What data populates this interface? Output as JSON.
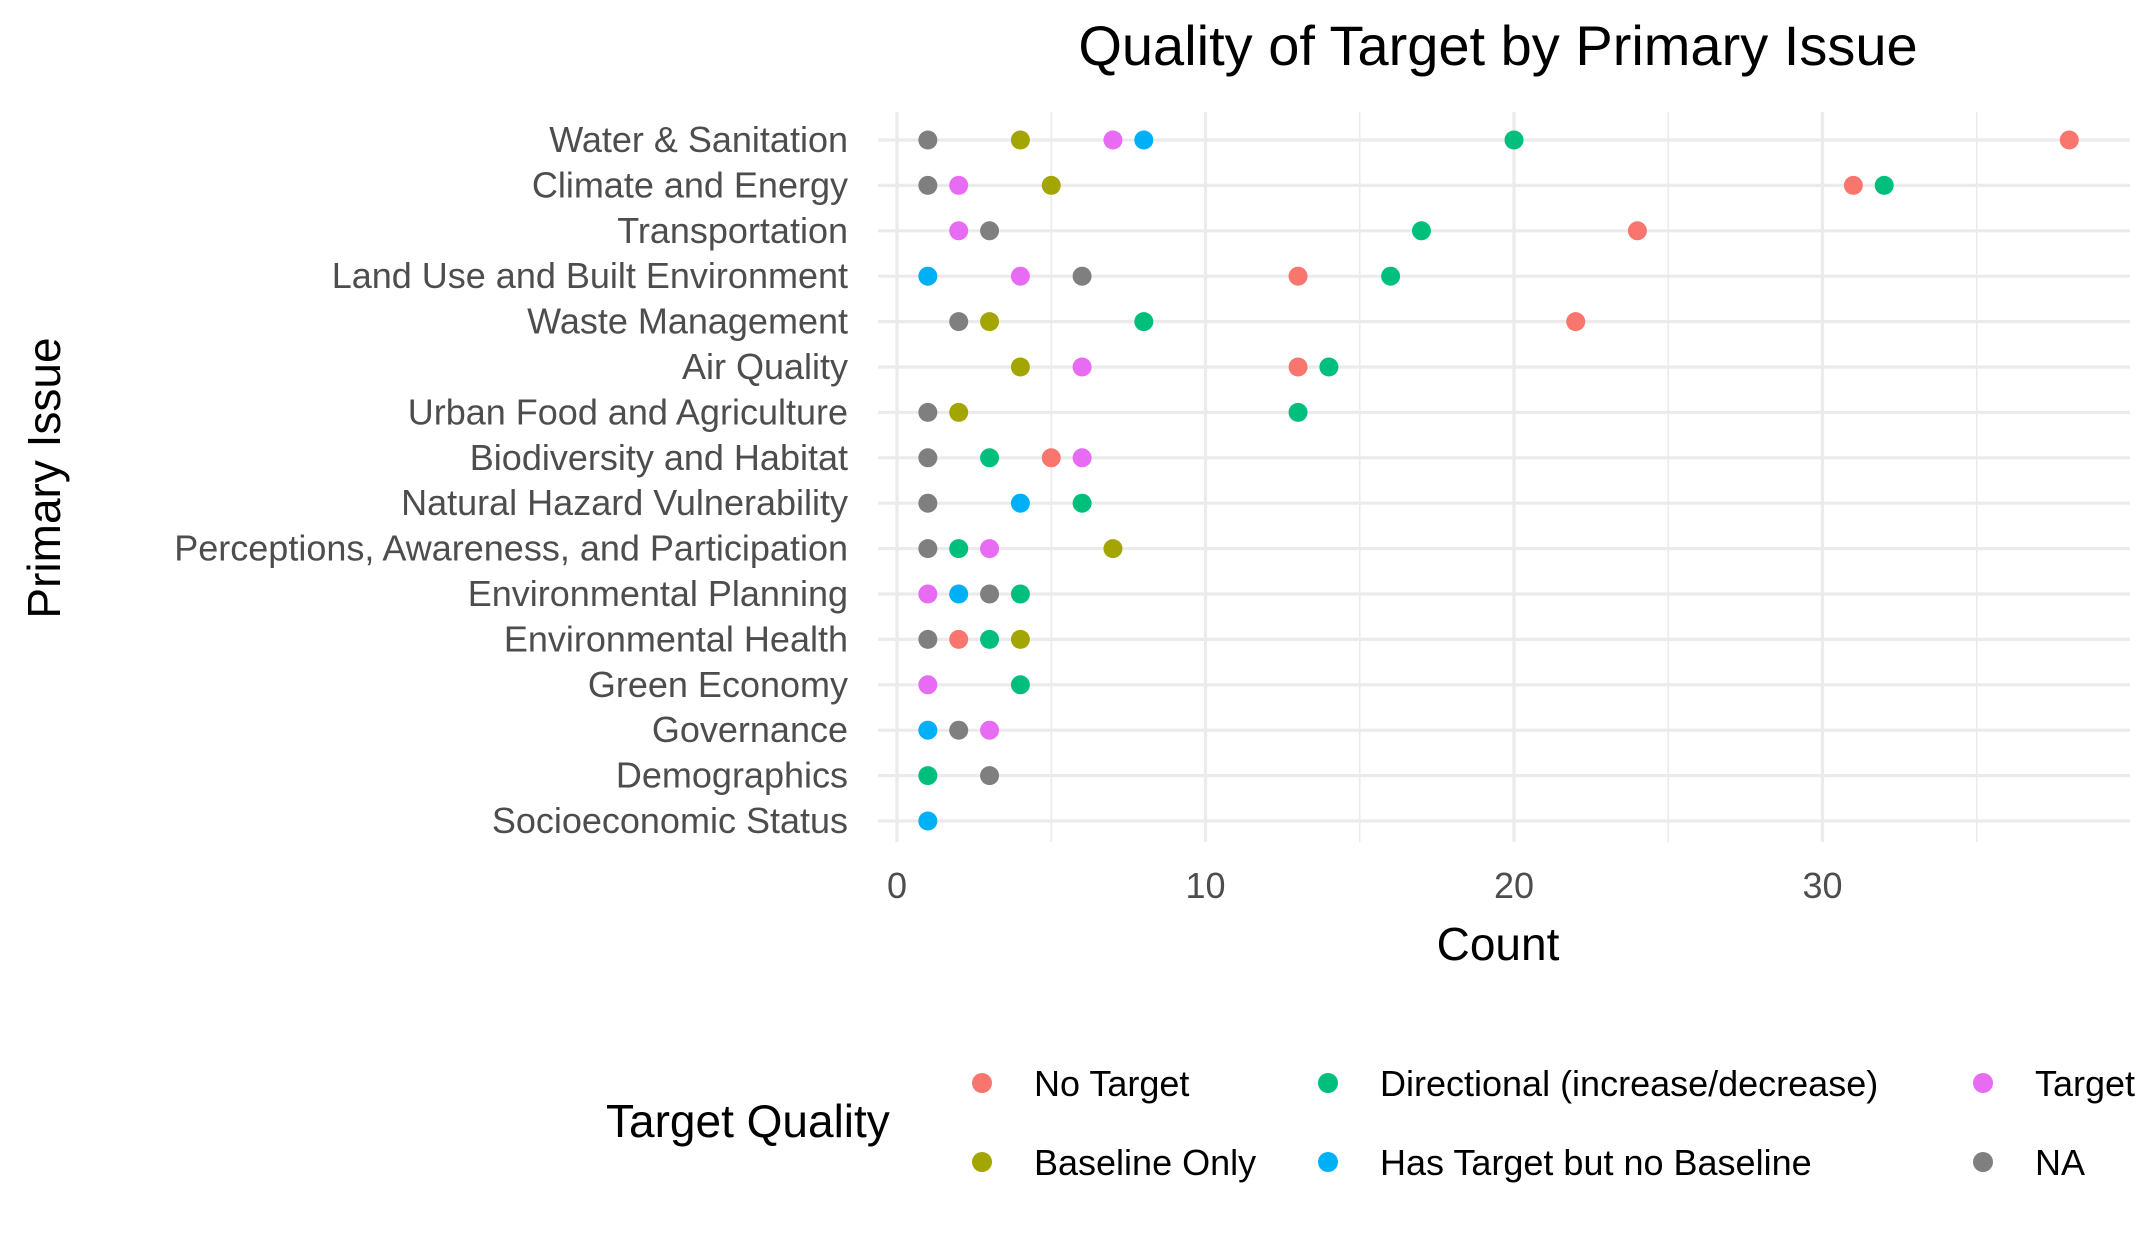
{
  "chart_data": {
    "type": "scatter",
    "title": "Quality of Target by Primary Issue",
    "xlabel": "Count",
    "ylabel": "Primary Issue",
    "xlim": [
      0,
      40
    ],
    "x_ticks": [
      0,
      10,
      20,
      30
    ],
    "grid": true,
    "legend": {
      "title": "Target Quality",
      "position": "bottom"
    },
    "categories": [
      "Water & Sanitation",
      "Climate and Energy",
      "Transportation",
      "Land Use and Built Environment",
      "Waste Management",
      "Air Quality",
      "Urban Food and Agriculture",
      "Biodiversity and Habitat",
      "Natural Hazard Vulnerability",
      "Perceptions, Awareness, and Participation",
      "Environmental Planning",
      "Environmental Health",
      "Green Economy",
      "Governance",
      "Demographics",
      "Socioeconomic Status"
    ],
    "series": [
      {
        "name": "No Target",
        "color": "#F8766D",
        "values": [
          38,
          31,
          24,
          13,
          22,
          13,
          null,
          5,
          null,
          null,
          null,
          2,
          null,
          null,
          null,
          null
        ]
      },
      {
        "name": "Baseline Only",
        "color": "#A3A500",
        "values": [
          4,
          5,
          null,
          null,
          3,
          4,
          2,
          null,
          null,
          7,
          null,
          4,
          null,
          null,
          null,
          null
        ]
      },
      {
        "name": "Directional (increase/decrease)",
        "color": "#00BF7D",
        "values": [
          20,
          32,
          17,
          16,
          8,
          14,
          13,
          3,
          6,
          2,
          4,
          3,
          4,
          null,
          1,
          null
        ]
      },
      {
        "name": "Has Target but no Baseline",
        "color": "#00B0F6",
        "values": [
          8,
          null,
          null,
          1,
          null,
          null,
          null,
          null,
          4,
          null,
          2,
          null,
          null,
          1,
          null,
          1
        ]
      },
      {
        "name": "Target",
        "color": "#E76BF3",
        "values": [
          7,
          2,
          2,
          4,
          null,
          6,
          null,
          6,
          null,
          3,
          1,
          null,
          1,
          3,
          null,
          null
        ]
      },
      {
        "name": "NA",
        "color": "#7F7F7F",
        "values": [
          1,
          1,
          3,
          6,
          2,
          null,
          1,
          1,
          1,
          1,
          3,
          1,
          null,
          2,
          3,
          null
        ]
      }
    ]
  }
}
